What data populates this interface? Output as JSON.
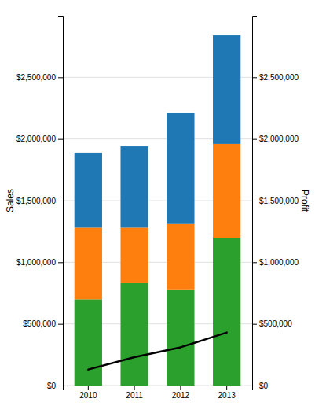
{
  "chart_data": {
    "type": "bar",
    "stacked": true,
    "categories": [
      "2010",
      "2011",
      "2012",
      "2013"
    ],
    "series": [
      {
        "color": "#2ca02c",
        "values": [
          700000,
          830000,
          780000,
          1200000
        ]
      },
      {
        "color": "#ff7f0e",
        "values": [
          580000,
          450000,
          530000,
          760000
        ]
      },
      {
        "color": "#1f77b4",
        "values": [
          610000,
          660000,
          900000,
          880000
        ]
      },
      {
        "type": "line",
        "axis": "y2",
        "color": "#000000",
        "values": [
          130000,
          230000,
          310000,
          430000
        ]
      }
    ],
    "ylabel": "Sales",
    "y2label": "Profit",
    "ylim": [
      0,
      3000000
    ],
    "yticks": [
      {
        "value": 0,
        "label": "$0"
      },
      {
        "value": 500000,
        "label": "$500,000"
      },
      {
        "value": 1000000,
        "label": "$1,000,000"
      },
      {
        "value": 1500000,
        "label": "$1,500,000"
      },
      {
        "value": 2000000,
        "label": "$2,000,000"
      },
      {
        "value": 2500000,
        "label": "$2,500,000"
      }
    ],
    "y2lim": [
      0,
      3000000
    ],
    "y2ticks": [
      {
        "value": 0,
        "label": "$0"
      },
      {
        "value": 500000,
        "label": "$500,000"
      },
      {
        "value": 1000000,
        "label": "$1,000,000"
      },
      {
        "value": 1500000,
        "label": "$1,500,000"
      },
      {
        "value": 2000000,
        "label": "$2,000,000"
      },
      {
        "value": 2500000,
        "label": "$2,500,000"
      }
    ],
    "grid": true
  }
}
